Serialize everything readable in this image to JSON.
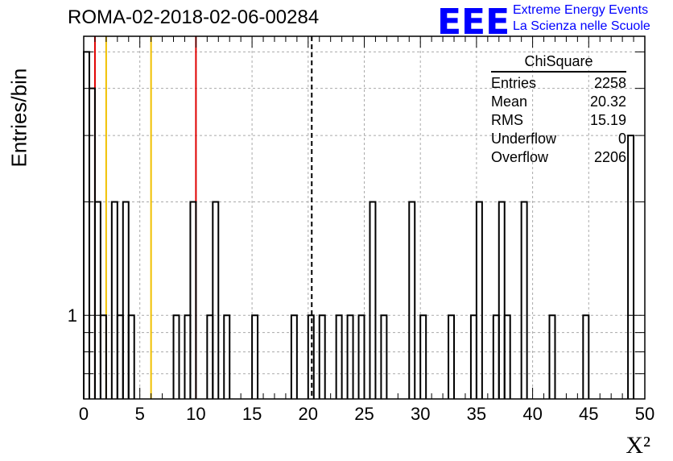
{
  "header": {
    "title": "ROMA-02-2018-02-06-00284"
  },
  "logo": {
    "mark": "EEE",
    "line1": "Extreme Energy Events",
    "line2": "La Scienza nelle Scuole",
    "color": "#0000ff"
  },
  "axes": {
    "ylabel": "Entries/bin",
    "xlabel": "X²"
  },
  "stats_box": {
    "title": "ChiSquare",
    "rows": [
      {
        "label": "Entries",
        "value": "2258"
      },
      {
        "label": "Mean",
        "value": "20.32"
      },
      {
        "label": "RMS",
        "value": "15.19"
      },
      {
        "label": "Underflow",
        "value": "0"
      },
      {
        "label": "Overflow",
        "value": "2206"
      }
    ]
  },
  "colors": {
    "histogram": "#000000",
    "red_line": "#e00000",
    "yellow_line": "#f0c000",
    "mean_line": "#000000",
    "grid": "#aaaaaa"
  },
  "chart_data": {
    "type": "bar",
    "histogram_style": "step",
    "xlim": [
      0,
      50
    ],
    "bin_width": 0.5,
    "y_scale": "log",
    "ylim": [
      0.6,
      5.5
    ],
    "xticks": [
      0,
      5,
      10,
      15,
      20,
      25,
      30,
      35,
      40,
      45,
      50
    ],
    "yticks": [
      {
        "value": 1,
        "label": "1"
      }
    ],
    "grid": true,
    "bins": [
      {
        "x": 0.0,
        "y": 5
      },
      {
        "x": 0.5,
        "y": 4
      },
      {
        "x": 1.0,
        "y": 2
      },
      {
        "x": 1.5,
        "y": 1
      },
      {
        "x": 2.5,
        "y": 2
      },
      {
        "x": 3.0,
        "y": 1
      },
      {
        "x": 3.5,
        "y": 2
      },
      {
        "x": 4.0,
        "y": 1
      },
      {
        "x": 8.0,
        "y": 1
      },
      {
        "x": 9.0,
        "y": 1
      },
      {
        "x": 9.5,
        "y": 2
      },
      {
        "x": 11.0,
        "y": 1
      },
      {
        "x": 11.5,
        "y": 2
      },
      {
        "x": 12.5,
        "y": 1
      },
      {
        "x": 15.0,
        "y": 1
      },
      {
        "x": 18.5,
        "y": 1
      },
      {
        "x": 20.0,
        "y": 1
      },
      {
        "x": 21.0,
        "y": 1
      },
      {
        "x": 22.5,
        "y": 1
      },
      {
        "x": 23.5,
        "y": 1
      },
      {
        "x": 24.5,
        "y": 1
      },
      {
        "x": 25.5,
        "y": 2
      },
      {
        "x": 26.5,
        "y": 1
      },
      {
        "x": 29.0,
        "y": 2
      },
      {
        "x": 30.0,
        "y": 1
      },
      {
        "x": 32.5,
        "y": 1
      },
      {
        "x": 34.5,
        "y": 1
      },
      {
        "x": 35.0,
        "y": 2
      },
      {
        "x": 36.5,
        "y": 1
      },
      {
        "x": 37.0,
        "y": 2
      },
      {
        "x": 37.5,
        "y": 1
      },
      {
        "x": 39.0,
        "y": 2
      },
      {
        "x": 41.5,
        "y": 1
      },
      {
        "x": 44.5,
        "y": 1
      },
      {
        "x": 48.5,
        "y": 3
      }
    ],
    "vertical_lines": [
      {
        "x": 1.0,
        "color": "red"
      },
      {
        "x": 10.0,
        "color": "red"
      },
      {
        "x": 2.0,
        "color": "yellow"
      },
      {
        "x": 6.0,
        "color": "yellow"
      },
      {
        "x": 20.32,
        "color": "black",
        "style": "dashed"
      }
    ]
  }
}
